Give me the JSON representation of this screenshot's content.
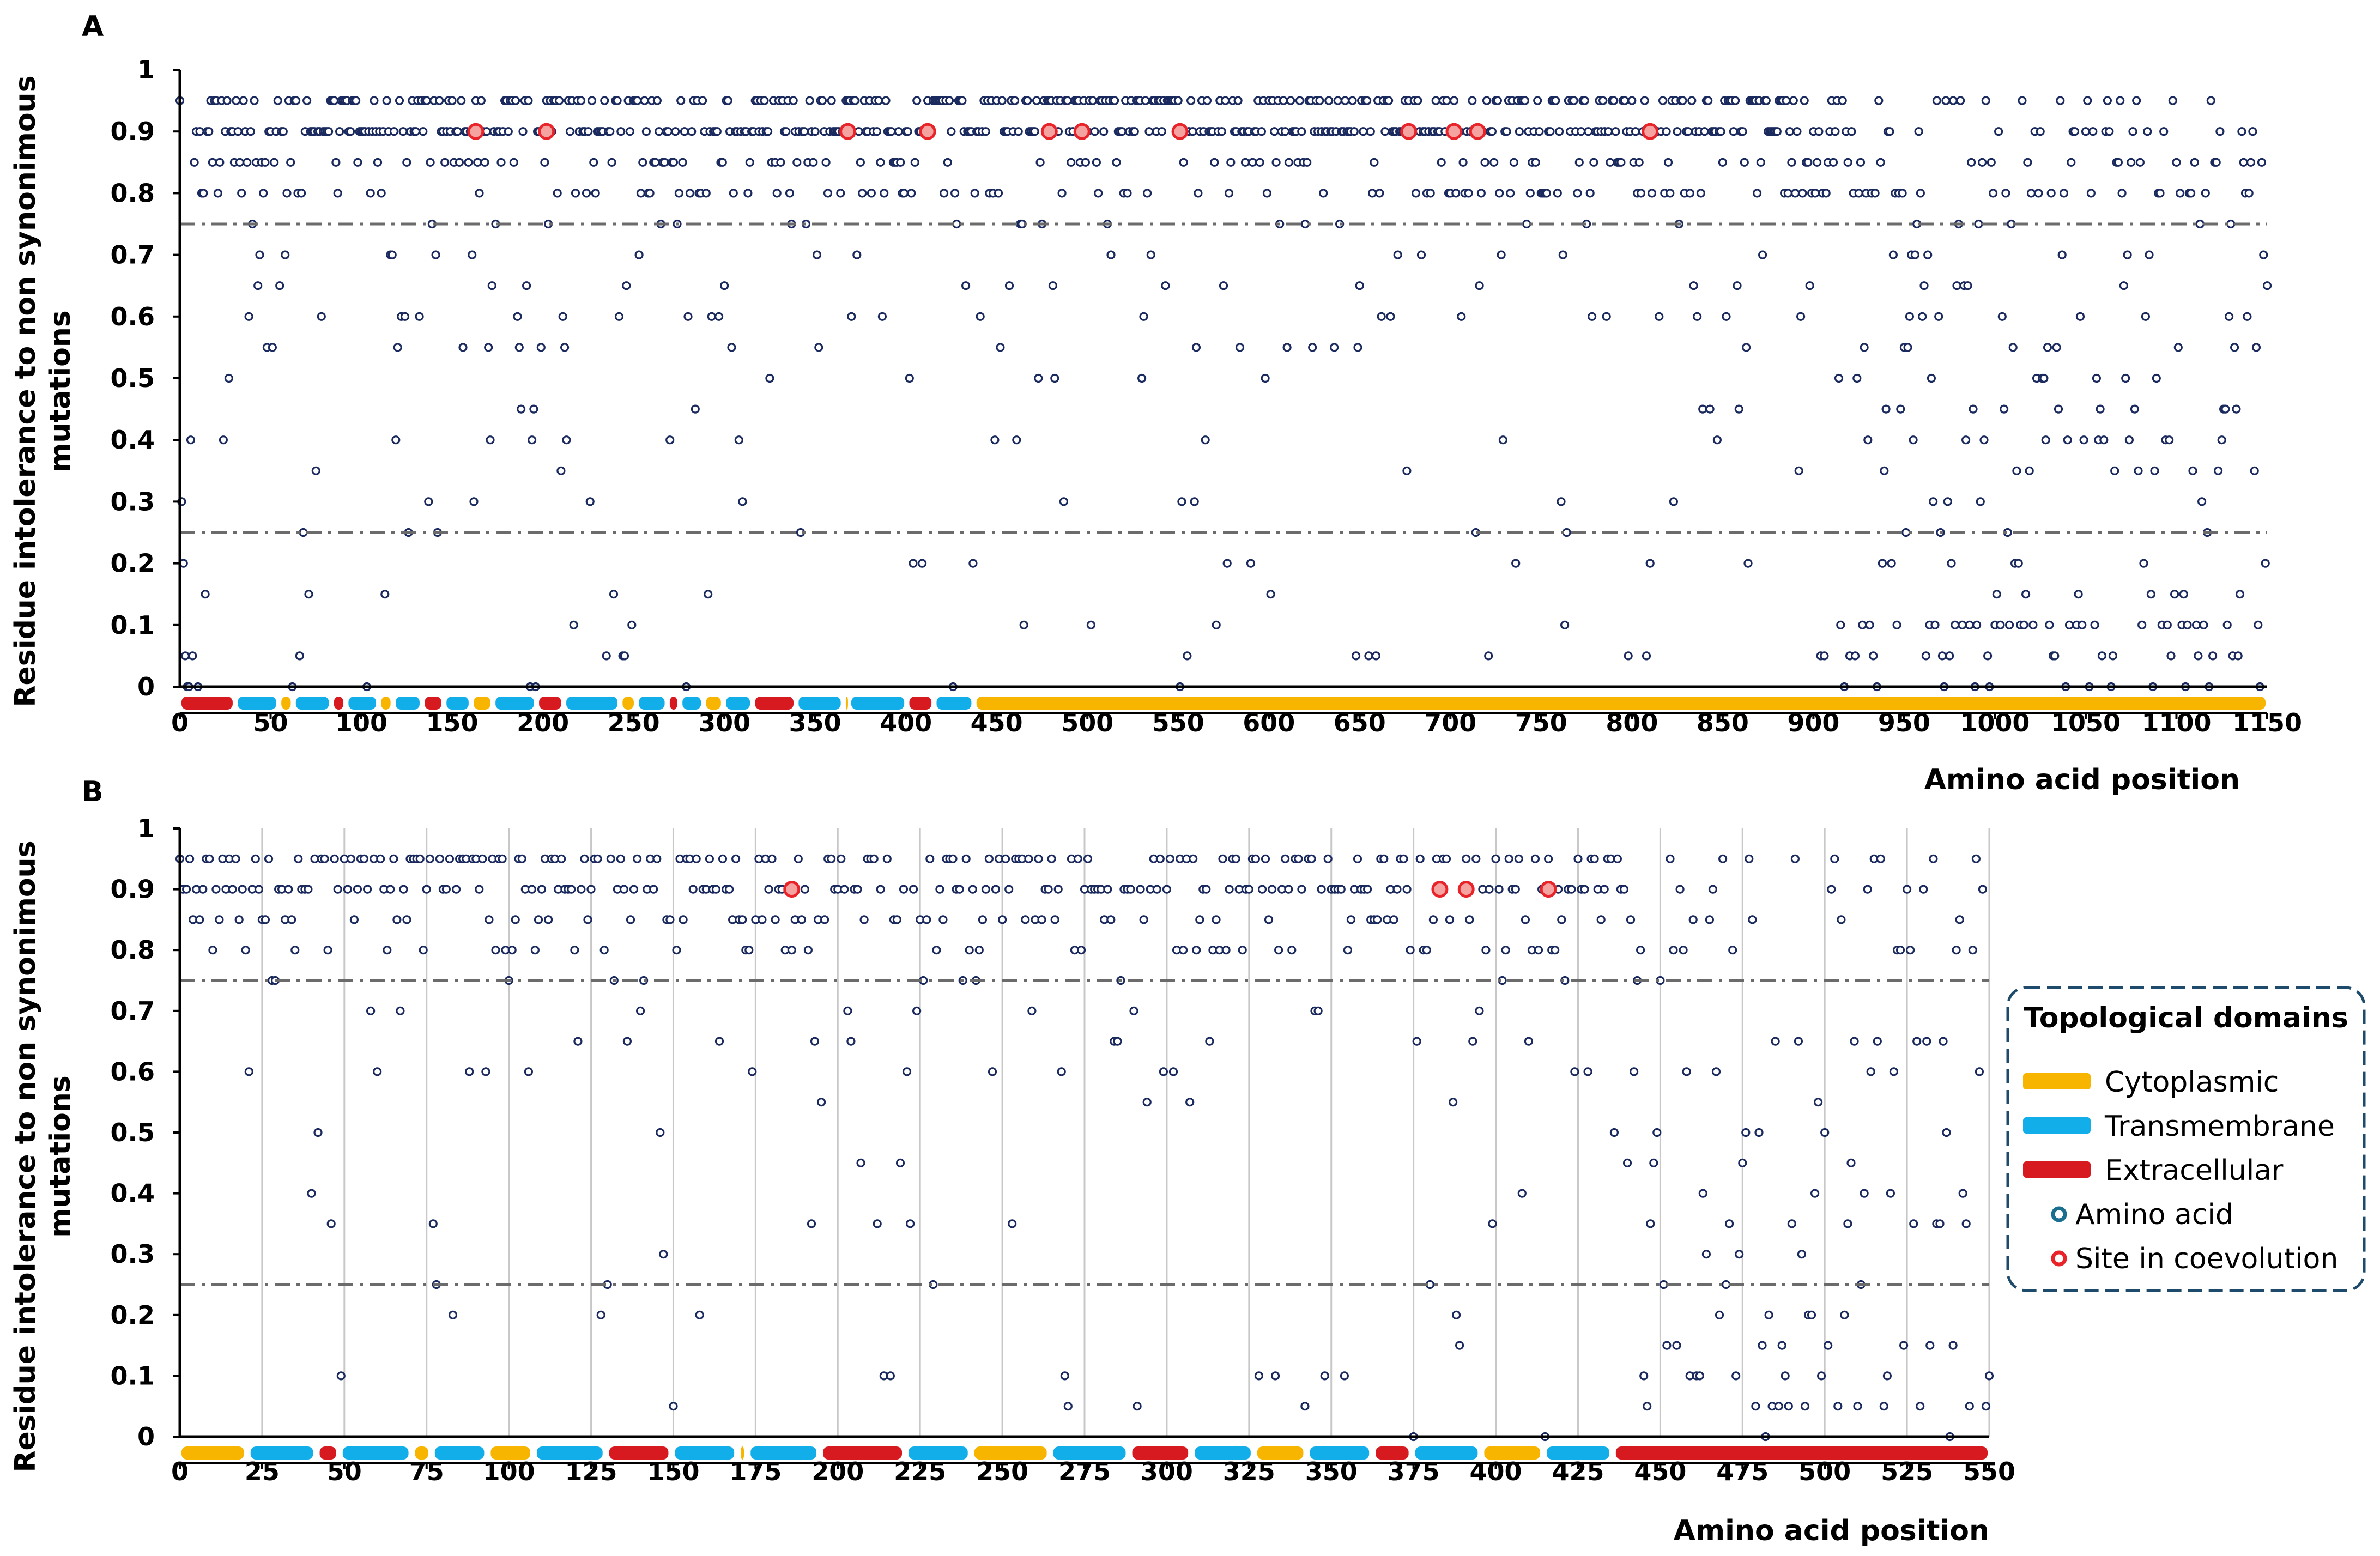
{
  "colors": {
    "point": "#1b2a5e",
    "coevolution": "#e8242a",
    "coevolution_fill": "#f4a3a0",
    "cytoplasmic": "#f7b500",
    "transmembrane": "#12aee9",
    "extracellular": "#d71920",
    "threshold": "#6b6b6b",
    "gridline": "#c8c8c8",
    "legend_border": "#1e4b6b"
  },
  "legend": {
    "title": "Topological domains",
    "items": [
      {
        "label": "Cytoplasmic",
        "kind": "bar",
        "color": "#f7b500"
      },
      {
        "label": "Transmembrane",
        "kind": "bar",
        "color": "#12aee9"
      },
      {
        "label": "Extracellular",
        "kind": "bar",
        "color": "#d71920"
      },
      {
        "label": "Amino acid",
        "kind": "dot",
        "color": "#1b2a5e"
      },
      {
        "label": "Site in coevolution",
        "kind": "ring",
        "color": "#e8242a"
      }
    ]
  },
  "chart_data": [
    {
      "panel": "A",
      "type": "scatter",
      "title": "",
      "xlabel": "Amino acid position",
      "ylabel": "Residue intolerance to non synonimous mutations",
      "xlim": [
        0,
        1150
      ],
      "ylim": [
        0,
        1
      ],
      "xticks": [
        0,
        50,
        100,
        150,
        200,
        250,
        300,
        350,
        400,
        450,
        500,
        550,
        600,
        650,
        700,
        750,
        800,
        850,
        900,
        950,
        1000,
        1050,
        1100,
        1150
      ],
      "yticks": [
        0,
        0.1,
        0.2,
        0.3,
        0.4,
        0.5,
        0.6,
        0.7,
        0.8,
        0.9,
        1
      ],
      "ytick_labels": [
        "0",
        "0.1",
        "0.2",
        "0.3",
        "0.4",
        "0.5",
        "0.6",
        "0.7",
        "0.8",
        "0.9",
        "1"
      ],
      "thresholds": [
        0.75,
        0.25
      ],
      "vertical_gridlines": false,
      "domains": [
        {
          "type": "extracellular",
          "start": 0,
          "end": 30
        },
        {
          "type": "transmembrane",
          "start": 31,
          "end": 54
        },
        {
          "type": "cytoplasmic",
          "start": 55,
          "end": 62
        },
        {
          "type": "transmembrane",
          "start": 63,
          "end": 83
        },
        {
          "type": "extracellular",
          "start": 84,
          "end": 91
        },
        {
          "type": "transmembrane",
          "start": 92,
          "end": 109
        },
        {
          "type": "cytoplasmic",
          "start": 110,
          "end": 117
        },
        {
          "type": "transmembrane",
          "start": 118,
          "end": 133
        },
        {
          "type": "extracellular",
          "start": 134,
          "end": 145
        },
        {
          "type": "transmembrane",
          "start": 146,
          "end": 160
        },
        {
          "type": "cytoplasmic",
          "start": 161,
          "end": 172
        },
        {
          "type": "transmembrane",
          "start": 173,
          "end": 196
        },
        {
          "type": "extracellular",
          "start": 197,
          "end": 211
        },
        {
          "type": "transmembrane",
          "start": 212,
          "end": 242
        },
        {
          "type": "cytoplasmic",
          "start": 243,
          "end": 251
        },
        {
          "type": "transmembrane",
          "start": 252,
          "end": 268
        },
        {
          "type": "extracellular",
          "start": 269,
          "end": 275
        },
        {
          "type": "transmembrane",
          "start": 276,
          "end": 288
        },
        {
          "type": "cytoplasmic",
          "start": 289,
          "end": 299
        },
        {
          "type": "transmembrane",
          "start": 300,
          "end": 315
        },
        {
          "type": "extracellular",
          "start": 316,
          "end": 339
        },
        {
          "type": "transmembrane",
          "start": 340,
          "end": 365
        },
        {
          "type": "cytoplasmic",
          "start": 366,
          "end": 368
        },
        {
          "type": "transmembrane",
          "start": 369,
          "end": 400
        },
        {
          "type": "extracellular",
          "start": 401,
          "end": 415
        },
        {
          "type": "transmembrane",
          "start": 416,
          "end": 437
        },
        {
          "type": "cytoplasmic",
          "start": 438,
          "end": 1150
        }
      ],
      "coevolution_sites": [
        {
          "x": 163,
          "y": 0.9
        },
        {
          "x": 202,
          "y": 0.9
        },
        {
          "x": 368,
          "y": 0.9
        },
        {
          "x": 412,
          "y": 0.9
        },
        {
          "x": 479,
          "y": 0.9
        },
        {
          "x": 497,
          "y": 0.9
        },
        {
          "x": 551,
          "y": 0.9
        },
        {
          "x": 677,
          "y": 0.9
        },
        {
          "x": 702,
          "y": 0.9
        },
        {
          "x": 715,
          "y": 0.9
        },
        {
          "x": 810,
          "y": 0.9
        }
      ]
    },
    {
      "panel": "B",
      "type": "scatter",
      "title": "",
      "xlabel": "Amino acid position",
      "ylabel": "Residue intolerance to non synonimous mutations",
      "xlim": [
        0,
        550
      ],
      "ylim": [
        0,
        1
      ],
      "xticks": [
        0,
        25,
        50,
        75,
        100,
        125,
        150,
        175,
        200,
        225,
        250,
        275,
        300,
        325,
        350,
        375,
        400,
        425,
        450,
        475,
        500,
        525,
        550
      ],
      "yticks": [
        0,
        0.1,
        0.2,
        0.3,
        0.4,
        0.5,
        0.6,
        0.7,
        0.8,
        0.9,
        1
      ],
      "ytick_labels": [
        "0",
        "0.1",
        "0.2",
        "0.3",
        "0.4",
        "0.5",
        "0.6",
        "0.7",
        "0.8",
        "0.9",
        "1"
      ],
      "thresholds": [
        0.75,
        0.25
      ],
      "vertical_gridlines": true,
      "domains": [
        {
          "type": "cytoplasmic",
          "start": 0,
          "end": 20
        },
        {
          "type": "transmembrane",
          "start": 21,
          "end": 41
        },
        {
          "type": "extracellular",
          "start": 42,
          "end": 48
        },
        {
          "type": "transmembrane",
          "start": 49,
          "end": 70
        },
        {
          "type": "cytoplasmic",
          "start": 71,
          "end": 76
        },
        {
          "type": "transmembrane",
          "start": 77,
          "end": 93
        },
        {
          "type": "cytoplasmic",
          "start": 94,
          "end": 107
        },
        {
          "type": "transmembrane",
          "start": 108,
          "end": 129
        },
        {
          "type": "extracellular",
          "start": 130,
          "end": 149
        },
        {
          "type": "transmembrane",
          "start": 150,
          "end": 169
        },
        {
          "type": "cytoplasmic",
          "start": 170,
          "end": 172
        },
        {
          "type": "transmembrane",
          "start": 173,
          "end": 194
        },
        {
          "type": "extracellular",
          "start": 195,
          "end": 220
        },
        {
          "type": "transmembrane",
          "start": 221,
          "end": 240
        },
        {
          "type": "cytoplasmic",
          "start": 241,
          "end": 264
        },
        {
          "type": "transmembrane",
          "start": 265,
          "end": 288
        },
        {
          "type": "extracellular",
          "start": 289,
          "end": 307
        },
        {
          "type": "transmembrane",
          "start": 308,
          "end": 326
        },
        {
          "type": "cytoplasmic",
          "start": 327,
          "end": 342
        },
        {
          "type": "transmembrane",
          "start": 343,
          "end": 362
        },
        {
          "type": "extracellular",
          "start": 363,
          "end": 374
        },
        {
          "type": "transmembrane",
          "start": 375,
          "end": 395
        },
        {
          "type": "cytoplasmic",
          "start": 396,
          "end": 414
        },
        {
          "type": "transmembrane",
          "start": 415,
          "end": 435
        },
        {
          "type": "extracellular",
          "start": 436,
          "end": 550
        }
      ],
      "coevolution_sites": [
        {
          "x": 186,
          "y": 0.9
        },
        {
          "x": 383,
          "y": 0.9
        },
        {
          "x": 391,
          "y": 0.9
        },
        {
          "x": 416,
          "y": 0.9
        }
      ]
    }
  ]
}
